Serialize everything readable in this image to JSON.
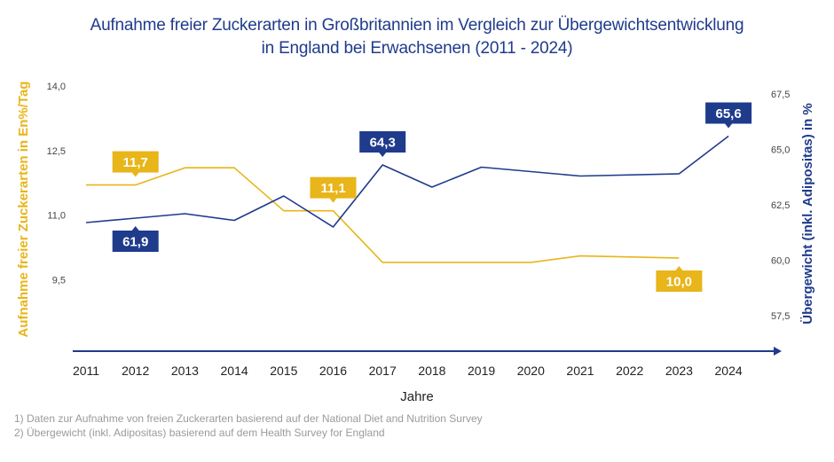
{
  "chart_data": {
    "type": "line",
    "title": "Aufnahme freier Zuckerarten in Großbritannien im Vergleich zur Übergewichtsentwicklung in England bei Erwachsenen (2011 - 2024)",
    "title_lines": [
      "Aufnahme freier Zuckerarten in Großbritannien im Vergleich zur Übergewichtsentwicklung",
      "in England bei Erwachsenen (2011 - 2024)"
    ],
    "xlabel": "Jahre",
    "x": [
      "2011",
      "2012",
      "2013",
      "2014",
      "2015",
      "2016",
      "2017",
      "2018",
      "2019",
      "2020",
      "2021",
      "2022",
      "2023",
      "2024"
    ],
    "y_left": {
      "label": "Aufnahme freier Zuckerarten in En%/Tag",
      "ticks": [
        14.0,
        12.5,
        11.0,
        9.5
      ],
      "tick_labels": [
        "14,0",
        "12,5",
        "11,0",
        "9,5"
      ],
      "range": [
        8.0,
        14.0
      ]
    },
    "y_right": {
      "label": "Übergewicht (inkl. Adipositas) in %",
      "ticks": [
        67.5,
        65.0,
        62.5,
        60.0,
        57.5
      ],
      "tick_labels": [
        "67,5",
        "65,0",
        "62,5",
        "60,0",
        "57,5"
      ],
      "range": [
        56.3,
        68.0
      ]
    },
    "grid": false,
    "series": [
      {
        "name": "Aufnahme freier Zuckerarten (En%/Tag)",
        "axis": "left",
        "color": "#e8b51a",
        "values": [
          11.7,
          11.7,
          12.1,
          12.1,
          11.1,
          11.1,
          9.9,
          9.9,
          9.9,
          9.9,
          10.05,
          null,
          10.0,
          null
        ],
        "data_labels": [
          {
            "x": "2012",
            "value": 11.7,
            "text": "11,7",
            "position": "above"
          },
          {
            "x": "2016",
            "value": 11.1,
            "text": "11,1",
            "position": "above"
          },
          {
            "x": "2023",
            "value": 10.0,
            "text": "10,0",
            "position": "below"
          }
        ]
      },
      {
        "name": "Übergewicht (inkl. Adipositas) in %",
        "axis": "right",
        "color": "#1f3b8c",
        "values": [
          61.7,
          61.9,
          62.1,
          61.8,
          62.9,
          61.5,
          64.3,
          63.3,
          64.2,
          null,
          63.8,
          null,
          63.9,
          65.6
        ],
        "data_labels": [
          {
            "x": "2012",
            "value": 61.9,
            "text": "61,9",
            "position": "below"
          },
          {
            "x": "2017",
            "value": 64.3,
            "text": "64,3",
            "position": "above"
          },
          {
            "x": "2024",
            "value": 65.6,
            "text": "65,6",
            "position": "above"
          }
        ]
      }
    ]
  },
  "footnotes": [
    "1) Daten zur Aufnahme von freien Zuckerarten basierend auf der National Diet and Nutrition Survey",
    "2) Übergewicht (inkl. Adipositas) basierend auf dem Health Survey for England"
  ]
}
